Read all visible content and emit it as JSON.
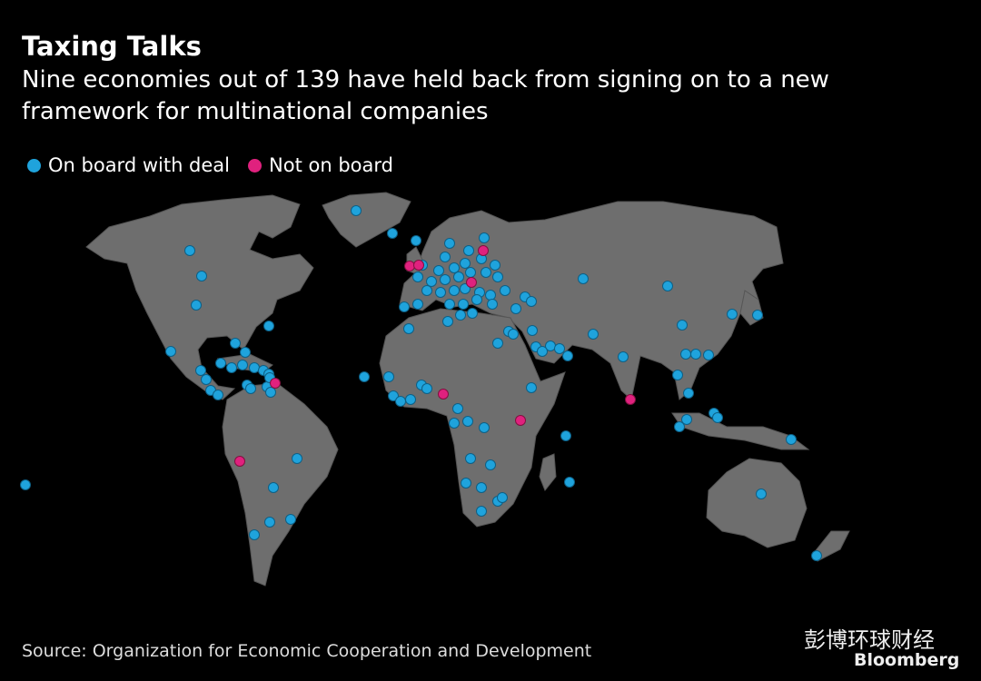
{
  "header": {
    "title": "Taxing Talks",
    "subtitle": "Nine economies out of 139 have held back from signing on to a new framework for multinational companies"
  },
  "legend": [
    "On board with deal",
    "Not on board"
  ],
  "source": "Source: Organization for Economic Cooperation and Development",
  "watermark": {
    "channel": "彭博环球财经",
    "brand": "Bloomberg"
  }
}
